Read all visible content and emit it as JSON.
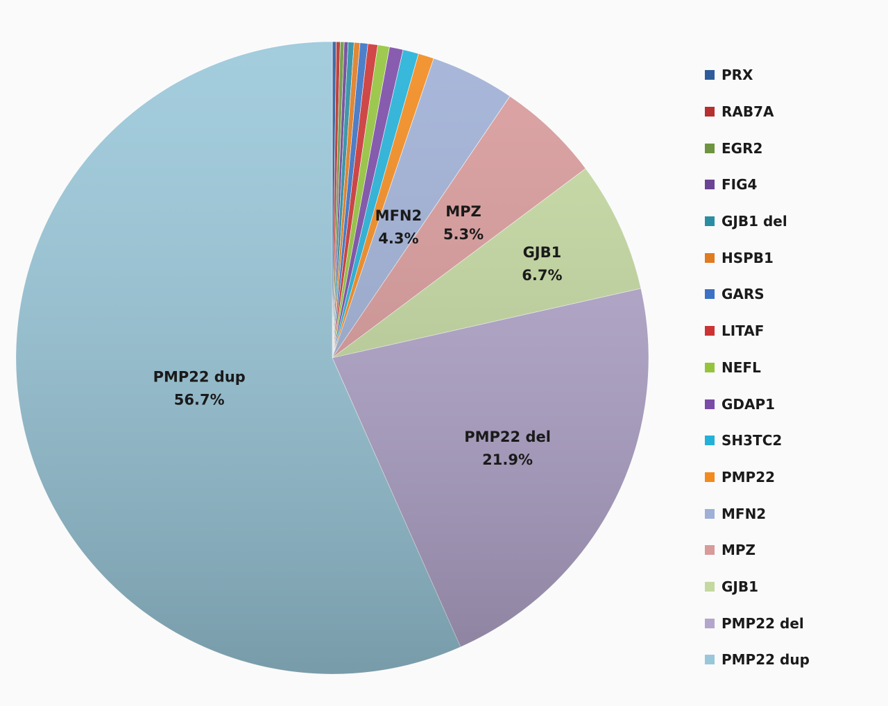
{
  "chart_data": {
    "type": "pie",
    "title": "",
    "start": "top",
    "direction": "clockwise",
    "slices": [
      {
        "name": "PRX",
        "value": 0.2,
        "color": "#2e5c9a"
      },
      {
        "name": "RAB7A",
        "value": 0.2,
        "color": "#b5302e"
      },
      {
        "name": "EGR2",
        "value": 0.2,
        "color": "#6e9440"
      },
      {
        "name": "FIG4",
        "value": 0.2,
        "color": "#6b4494"
      },
      {
        "name": "GJB1 del",
        "value": 0.3,
        "color": "#2a8ea3"
      },
      {
        "name": "HSPB1",
        "value": 0.3,
        "color": "#e07b1f"
      },
      {
        "name": "GARS",
        "value": 0.4,
        "color": "#3b72c4"
      },
      {
        "name": "LITAF",
        "value": 0.5,
        "color": "#cc3434"
      },
      {
        "name": "NEFL",
        "value": 0.6,
        "color": "#94c43c"
      },
      {
        "name": "GDAP1",
        "value": 0.7,
        "color": "#7b4ba8"
      },
      {
        "name": "SH3TC2",
        "value": 0.8,
        "color": "#22b1d8"
      },
      {
        "name": "PMP22",
        "value": 0.8,
        "color": "#f28a1e"
      },
      {
        "name": "MFN2",
        "value": 4.3,
        "color": "#9fb0d6",
        "label": "MFN2",
        "pct": "4.3%"
      },
      {
        "name": "MPZ",
        "value": 5.3,
        "color": "#d99a9a",
        "label": "MPZ",
        "pct": "5.3%"
      },
      {
        "name": "GJB1",
        "value": 6.7,
        "color": "#c4d9a0",
        "label": "GJB1",
        "pct": "6.7%"
      },
      {
        "name": "PMP22 del",
        "value": 21.9,
        "color": "#b3a6cc",
        "label": "PMP22 del",
        "pct": "21.9%"
      },
      {
        "name": "PMP22 dup",
        "value": 56.7,
        "color": "#99c7d9",
        "label": "PMP22 dup",
        "pct": "56.7%"
      }
    ],
    "legend": {
      "position": "right",
      "items": [
        "PRX",
        "RAB7A",
        "EGR2",
        "FIG4",
        "GJB1 del",
        "HSPB1",
        "GARS",
        "LITAF",
        "NEFL",
        "GDAP1",
        "SH3TC2",
        "PMP22",
        "MFN2",
        "MPZ",
        "GJB1",
        "PMP22 del",
        "PMP22 dup"
      ]
    }
  }
}
